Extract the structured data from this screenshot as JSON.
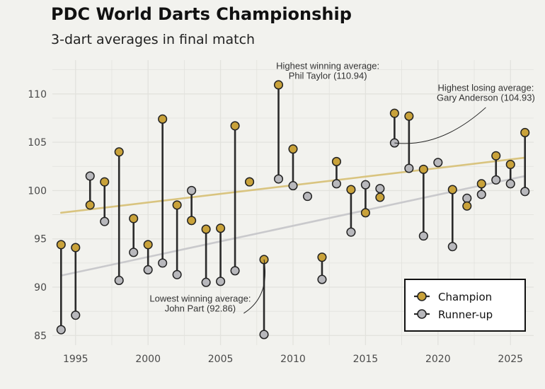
{
  "chart_data": {
    "type": "dumbbell",
    "title": "PDC World Darts Championship",
    "subtitle": "3-dart averages in final match",
    "xlabel": "",
    "ylabel": "",
    "xlim": [
      1993.4,
      2026.6
    ],
    "ylim": [
      84.0,
      113.5
    ],
    "x_ticks": [
      "1995",
      "2000",
      "2005",
      "2010",
      "2015",
      "2020",
      "2025"
    ],
    "y_ticks": [
      "85",
      "90",
      "95",
      "100",
      "105",
      "110"
    ],
    "grid": true,
    "legend_position": "bottom-right",
    "colors": {
      "champion": "#c9a23a",
      "runner_up": "#b8b8bc",
      "champion_trend": "#d9c47f",
      "runner_up_trend": "#c9c9cc",
      "segment": "#2a2a2a",
      "background": "#f2f2ee",
      "grid": "#e2e2dd"
    },
    "series": [
      {
        "name": "Champion",
        "key": "champion"
      },
      {
        "name": "Runner-up",
        "key": "runner_up"
      }
    ],
    "points": [
      {
        "year": 1994,
        "champion": 94.4,
        "runner_up": 85.6
      },
      {
        "year": 1995,
        "champion": 94.1,
        "runner_up": 87.1
      },
      {
        "year": 1996,
        "champion": 98.5,
        "runner_up": 101.5
      },
      {
        "year": 1997,
        "champion": 100.9,
        "runner_up": 96.8
      },
      {
        "year": 1998,
        "champion": 104.0,
        "runner_up": 90.7
      },
      {
        "year": 1999,
        "champion": 97.1,
        "runner_up": 93.6
      },
      {
        "year": 2000,
        "champion": 94.4,
        "runner_up": 91.8
      },
      {
        "year": 2001,
        "champion": 107.4,
        "runner_up": 92.5
      },
      {
        "year": 2002,
        "champion": 98.5,
        "runner_up": 91.3
      },
      {
        "year": 2003,
        "champion": 96.9,
        "runner_up": 100.0
      },
      {
        "year": 2004,
        "champion": 96.0,
        "runner_up": 90.5
      },
      {
        "year": 2005,
        "champion": 96.1,
        "runner_up": 90.6
      },
      {
        "year": 2006,
        "champion": 106.7,
        "runner_up": 91.7
      },
      {
        "year": 2007,
        "champion": 100.9,
        "runner_up": 100.9
      },
      {
        "year": 2008,
        "champion": 92.86,
        "runner_up": 85.1
      },
      {
        "year": 2009,
        "champion": 110.94,
        "runner_up": 101.2
      },
      {
        "year": 2010,
        "champion": 104.3,
        "runner_up": 100.5
      },
      {
        "year": 2011,
        "champion": null,
        "runner_up": 99.4
      },
      {
        "year": 2012,
        "champion": 93.1,
        "runner_up": 90.8
      },
      {
        "year": 2013,
        "champion": 103.0,
        "runner_up": 100.7
      },
      {
        "year": 2014,
        "champion": 100.1,
        "runner_up": 95.7
      },
      {
        "year": 2015,
        "champion": 97.7,
        "runner_up": 100.6
      },
      {
        "year": 2016,
        "champion": 99.3,
        "runner_up": 100.2
      },
      {
        "year": 2017,
        "champion": 108.0,
        "runner_up": 104.93
      },
      {
        "year": 2018,
        "champion": 107.7,
        "runner_up": 102.3
      },
      {
        "year": 2019,
        "champion": 102.2,
        "runner_up": 95.3
      },
      {
        "year": 2020,
        "champion": null,
        "runner_up": 102.9
      },
      {
        "year": 2021,
        "champion": 100.1,
        "runner_up": 94.2
      },
      {
        "year": 2022,
        "champion": 98.4,
        "runner_up": 99.2
      },
      {
        "year": 2023,
        "champion": 100.7,
        "runner_up": 99.6
      },
      {
        "year": 2024,
        "champion": 103.6,
        "runner_up": 101.1
      },
      {
        "year": 2025,
        "champion": 102.7,
        "runner_up": 100.7
      },
      {
        "year": 2026,
        "champion": 106.0,
        "runner_up": 99.9
      }
    ],
    "trendlines": [
      {
        "key": "champion",
        "x": [
          1994,
          2026
        ],
        "y": [
          97.7,
          103.4
        ]
      },
      {
        "key": "runner_up",
        "x": [
          1994,
          2026
        ],
        "y": [
          91.2,
          101.5
        ]
      }
    ],
    "annotations": [
      {
        "lines": [
          "Highest winning average:",
          "Phil Taylor (110.94)"
        ],
        "target": [
          2009,
          110.94
        ],
        "text_at": [
          2012.4,
          112.6
        ],
        "leader": "none"
      },
      {
        "lines": [
          "Highest losing average:",
          "Gary Anderson (104.93)"
        ],
        "target": [
          2017,
          104.93
        ],
        "text_at": [
          2023.3,
          110.3
        ],
        "leader": "curve",
        "leader_from": [
          2023.3,
          108.6
        ],
        "leader_ctrl": [
          2020.2,
          104.4
        ]
      },
      {
        "lines": [
          "Lowest winning average:",
          "John Part (92.86)"
        ],
        "target": [
          2008,
          92.86
        ],
        "text_at": [
          2003.6,
          88.5
        ],
        "leader": "curve",
        "leader_from": [
          2006.6,
          87.3
        ],
        "leader_ctrl": [
          2008.4,
          89.0
        ]
      }
    ]
  }
}
